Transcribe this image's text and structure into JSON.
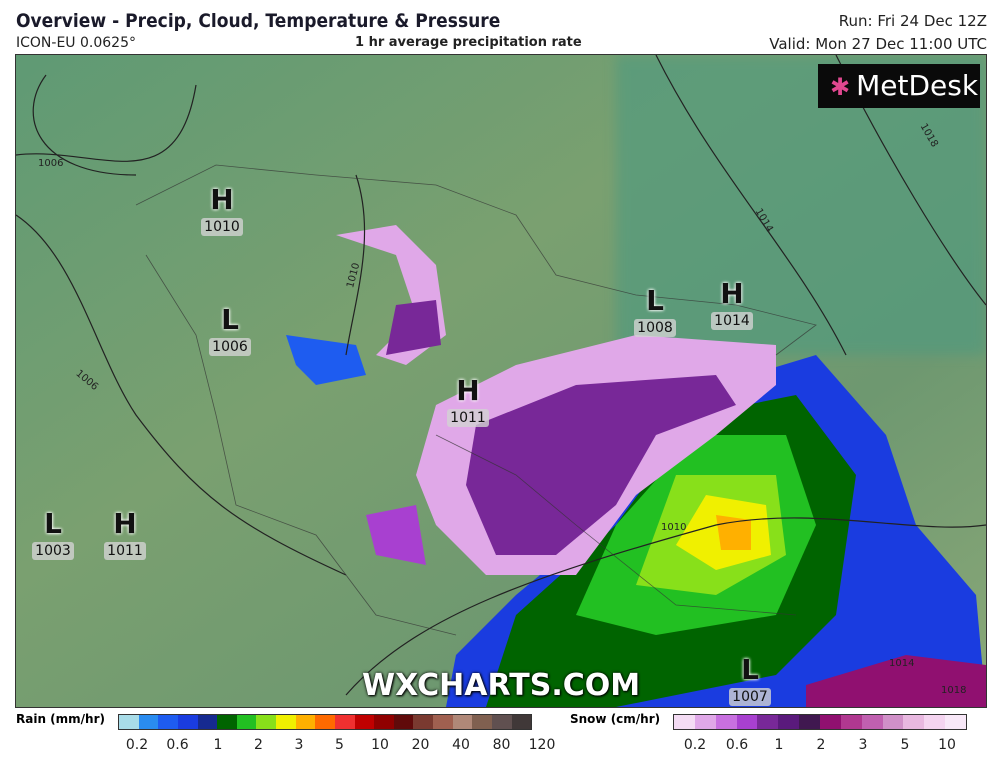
{
  "header": {
    "title": "Overview - Precip, Cloud, Temperature & Pressure",
    "model": "ICON-EU 0.0625°",
    "subtitle": "1 hr average precipitation rate",
    "run": "Run: Fri 24 Dec 12Z",
    "valid": "Valid: Mon 27 Dec 11:00 UTC"
  },
  "logo": "MetDesk",
  "watermark": "WXCHARTS.COM",
  "pressure_centers": [
    {
      "type": "H",
      "value": "1010"
    },
    {
      "type": "L",
      "value": "1006"
    },
    {
      "type": "H",
      "value": "1011"
    },
    {
      "type": "L",
      "value": "1008"
    },
    {
      "type": "H",
      "value": "1014"
    },
    {
      "type": "L",
      "value": "1003"
    },
    {
      "type": "H",
      "value": "1011"
    },
    {
      "type": "L",
      "value": "1007"
    }
  ],
  "isobar_labels": [
    "1006",
    "1010",
    "1006",
    "1014",
    "1018",
    "1010",
    "1014",
    "1018"
  ],
  "rain_legend": {
    "label": "Rain (mm/hr)",
    "ticks": [
      "0.2",
      "0.6",
      "1",
      "2",
      "3",
      "5",
      "10",
      "20",
      "40",
      "80",
      "120"
    ],
    "colors": [
      "#a8dce8",
      "#2a8cf0",
      "#1e5cf0",
      "#1a3ce0",
      "#162a90",
      "#006400",
      "#22c022",
      "#88e01a",
      "#f0f000",
      "#ffb000",
      "#ff6a00",
      "#f03030",
      "#c00000",
      "#900000",
      "#600a0a",
      "#7a3a30",
      "#a06050",
      "#b08878",
      "#806050",
      "#605050",
      "#403838"
    ]
  },
  "snow_legend": {
    "label": "Snow (cm/hr)",
    "ticks": [
      "0.2",
      "0.6",
      "1",
      "2",
      "3",
      "5",
      "10"
    ],
    "colors": [
      "#f4dcf4",
      "#e0a8e8",
      "#c870e0",
      "#a840d0",
      "#782898",
      "#5a1a7c",
      "#401850",
      "#901070",
      "#b03890",
      "#c060b0",
      "#d090c8",
      "#e8b8e0",
      "#f4d4f0",
      "#f8e8f8"
    ]
  }
}
